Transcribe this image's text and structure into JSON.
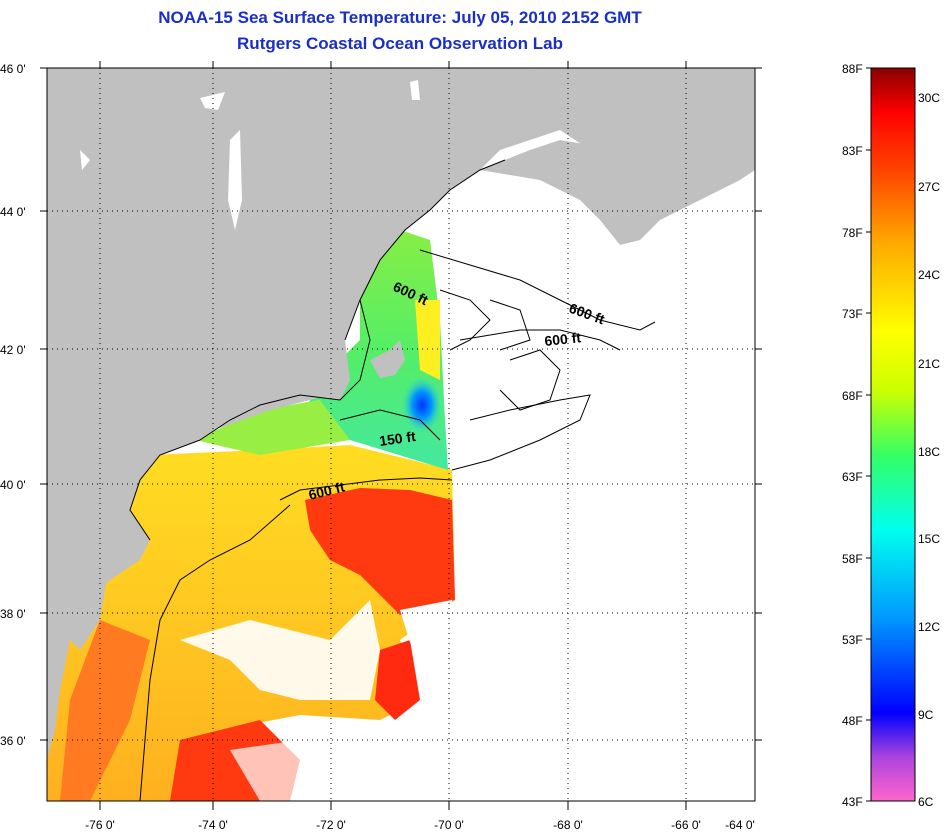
{
  "title": "NOAA-15 Sea Surface Temperature:  July 05, 2010 2152 GMT",
  "subtitle": "Rutgers Coastal Ocean Observation Lab",
  "lat_labels": [
    "46 0'",
    "44 0'",
    "42 0'",
    "40 0'",
    "38 0'",
    "36 0'"
  ],
  "lon_labels": [
    "-76 0'",
    "-74 0'",
    "-72 0'",
    "-70 0'",
    "-68 0'",
    "-66 0'",
    "-64 0'"
  ],
  "depth_labels": [
    "600 ft",
    "600 ft",
    "600 ft",
    "150 ft",
    "600 ft"
  ],
  "colorbar": {
    "fahrenheit": [
      "88F",
      "83F",
      "78F",
      "73F",
      "68F",
      "63F",
      "58F",
      "53F",
      "48F",
      "43F"
    ],
    "celsius": [
      "30C",
      "27C",
      "24C",
      "21C",
      "18C",
      "15C",
      "12C",
      "9C",
      "6C"
    ]
  },
  "colors": {
    "land": "#c0c0c0",
    "title": "#1a2ec8"
  }
}
